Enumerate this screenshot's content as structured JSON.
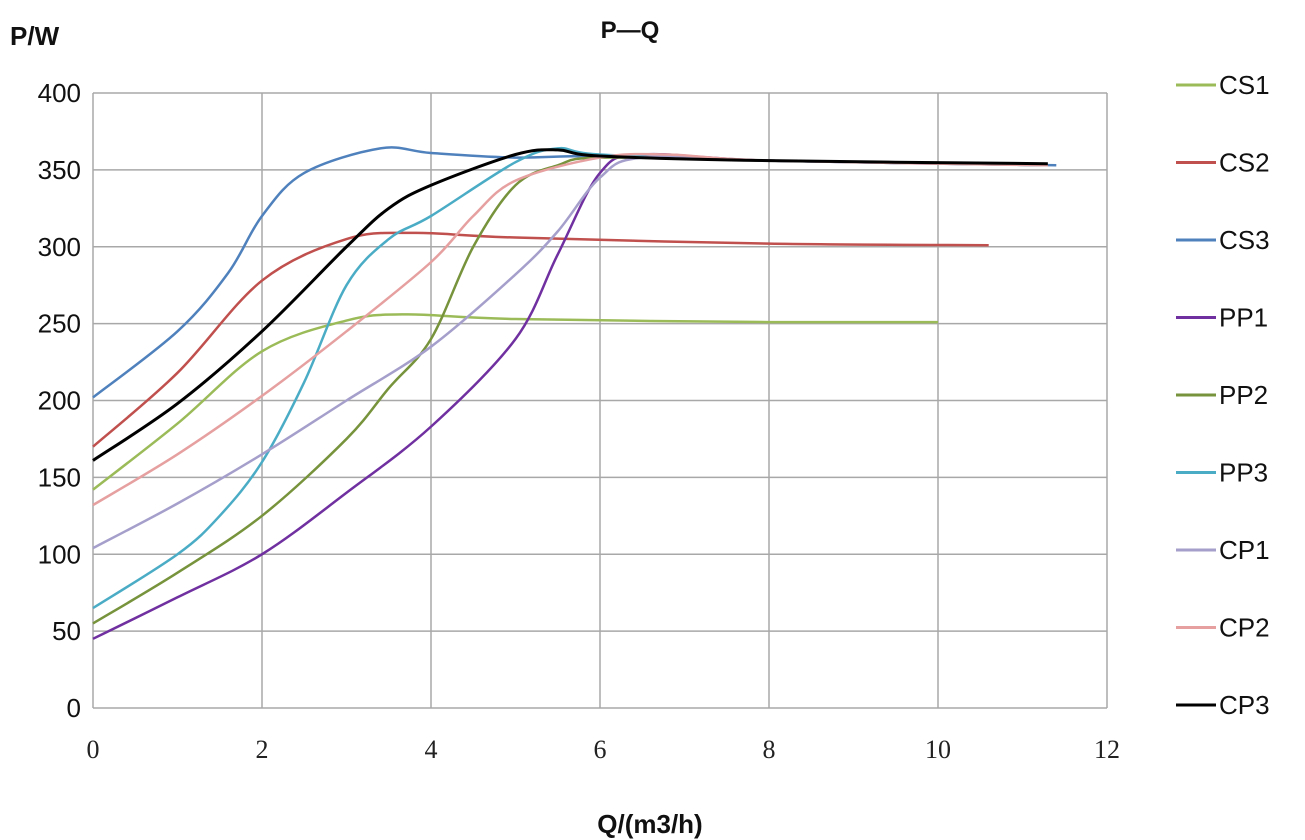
{
  "chart_data": {
    "type": "line",
    "title": "P—Q",
    "ylabel": "P/W",
    "xlabel": "Q/(m3/h)",
    "xlim": [
      0,
      12
    ],
    "ylim": [
      0,
      400
    ],
    "xticks": [
      0,
      2,
      4,
      6,
      8,
      10,
      12
    ],
    "yticks": [
      0,
      50,
      100,
      150,
      200,
      250,
      300,
      350,
      400
    ],
    "grid": true,
    "legend_position": "right",
    "series": [
      {
        "name": "CS1",
        "color": "#9BBB59",
        "x": [
          0,
          1,
          2,
          3,
          3.7,
          5,
          8,
          10
        ],
        "y": [
          142,
          185,
          232,
          252,
          256,
          253,
          251,
          251
        ]
      },
      {
        "name": "CS2",
        "color": "#C0504D",
        "x": [
          0,
          1,
          2,
          3,
          3.8,
          5,
          8,
          10.6
        ],
        "y": [
          170,
          218,
          278,
          305,
          309,
          306,
          302,
          301
        ]
      },
      {
        "name": "CS3",
        "color": "#4F81BD",
        "x": [
          0,
          1,
          1.6,
          2,
          2.5,
          3.4,
          4,
          5,
          6,
          8,
          11.4
        ],
        "y": [
          202,
          245,
          283,
          320,
          348,
          364,
          361,
          358,
          359,
          356,
          353
        ]
      },
      {
        "name": "PP1",
        "color": "#7030A0",
        "x": [
          0,
          1,
          2,
          3,
          4,
          5,
          5.5,
          6,
          6.5,
          8,
          11.3
        ],
        "y": [
          45,
          72,
          100,
          140,
          183,
          240,
          295,
          348,
          360,
          356,
          353
        ]
      },
      {
        "name": "PP2",
        "color": "#77933C",
        "x": [
          0,
          1,
          2,
          3,
          3.5,
          4,
          4.5,
          5,
          5.5,
          6,
          8,
          11.3
        ],
        "y": [
          55,
          88,
          125,
          175,
          208,
          240,
          300,
          340,
          353,
          358,
          356,
          353
        ]
      },
      {
        "name": "PP3",
        "color": "#4BACC6",
        "x": [
          0,
          1,
          1.5,
          2,
          2.5,
          3,
          3.5,
          4,
          5,
          5.5,
          6,
          8,
          11.3
        ],
        "y": [
          65,
          100,
          125,
          160,
          212,
          275,
          305,
          320,
          355,
          364,
          360,
          356,
          353
        ]
      },
      {
        "name": "CP1",
        "color": "#A59FCB",
        "x": [
          0,
          1,
          2,
          3,
          4,
          5,
          5.5,
          6,
          6.5,
          8,
          11.3
        ],
        "y": [
          104,
          133,
          165,
          200,
          235,
          282,
          310,
          345,
          358,
          356,
          353
        ]
      },
      {
        "name": "CP2",
        "color": "#E6A0A0",
        "x": [
          0,
          1,
          2,
          3,
          4,
          4.5,
          5,
          6,
          6.8,
          8,
          11.3
        ],
        "y": [
          132,
          165,
          203,
          245,
          290,
          320,
          343,
          358,
          360,
          356,
          353
        ]
      },
      {
        "name": "CP3",
        "color": "#000000",
        "x": [
          0,
          1,
          2,
          3,
          3.5,
          4,
          5,
          5.5,
          6,
          8,
          11.3
        ],
        "y": [
          161,
          198,
          245,
          300,
          325,
          340,
          360,
          363,
          359,
          356,
          354
        ]
      }
    ]
  }
}
